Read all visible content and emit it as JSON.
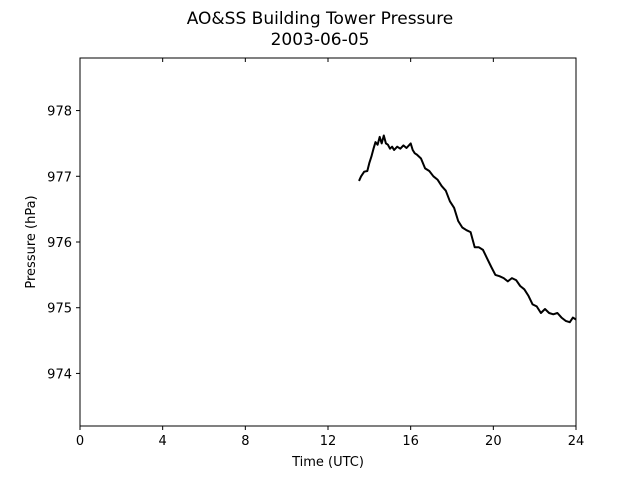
{
  "chart_data": {
    "type": "line",
    "title": "AO&SS Building Tower Pressure",
    "subtitle": "2003-06-05",
    "xlabel": "Time (UTC)",
    "ylabel": "Pressure (hPa)",
    "xlim": [
      0,
      24
    ],
    "ylim": [
      973.2,
      978.8
    ],
    "xticks": [
      0,
      4,
      8,
      12,
      16,
      20,
      24
    ],
    "xtick_labels": [
      "0",
      "4",
      "8",
      "12",
      "16",
      "20",
      "24"
    ],
    "yticks": [
      974,
      975,
      976,
      977,
      978
    ],
    "ytick_labels": [
      "974",
      "975",
      "976",
      "977",
      "978"
    ],
    "grid": false,
    "line_color": "#000000",
    "series": [
      {
        "x": [
          13.5,
          13.6,
          13.75,
          13.9,
          14.0,
          14.1,
          14.2,
          14.3,
          14.4,
          14.5,
          14.6,
          14.7,
          14.8,
          14.9,
          15.0,
          15.1,
          15.2,
          15.35,
          15.5,
          15.65,
          15.8,
          16.0,
          16.1,
          16.2,
          16.3,
          16.5,
          16.7,
          16.9,
          17.1,
          17.3,
          17.5,
          17.7,
          17.9,
          18.1,
          18.3,
          18.5,
          18.7,
          18.9,
          19.1,
          19.3,
          19.5,
          19.7,
          19.9,
          20.1,
          20.3,
          20.5,
          20.7,
          20.9,
          21.1,
          21.3,
          21.5,
          21.7,
          21.9,
          22.1,
          22.3,
          22.5,
          22.7,
          22.9,
          23.1,
          23.3,
          23.5,
          23.7,
          23.85,
          24.0
        ],
        "y": [
          976.93,
          977.0,
          977.07,
          977.08,
          977.2,
          977.3,
          977.42,
          977.52,
          977.48,
          977.6,
          977.5,
          977.62,
          977.5,
          977.48,
          977.42,
          977.45,
          977.4,
          977.45,
          977.42,
          977.47,
          977.43,
          977.5,
          977.4,
          977.35,
          977.33,
          977.27,
          977.12,
          977.08,
          977.0,
          976.95,
          976.85,
          976.78,
          976.62,
          976.52,
          976.32,
          976.22,
          976.18,
          976.15,
          975.92,
          975.92,
          975.88,
          975.75,
          975.62,
          975.5,
          975.48,
          975.45,
          975.4,
          975.45,
          975.42,
          975.33,
          975.28,
          975.18,
          975.05,
          975.02,
          974.92,
          974.98,
          974.92,
          974.9,
          974.92,
          974.85,
          974.8,
          974.78,
          974.85,
          974.82
        ]
      }
    ]
  }
}
